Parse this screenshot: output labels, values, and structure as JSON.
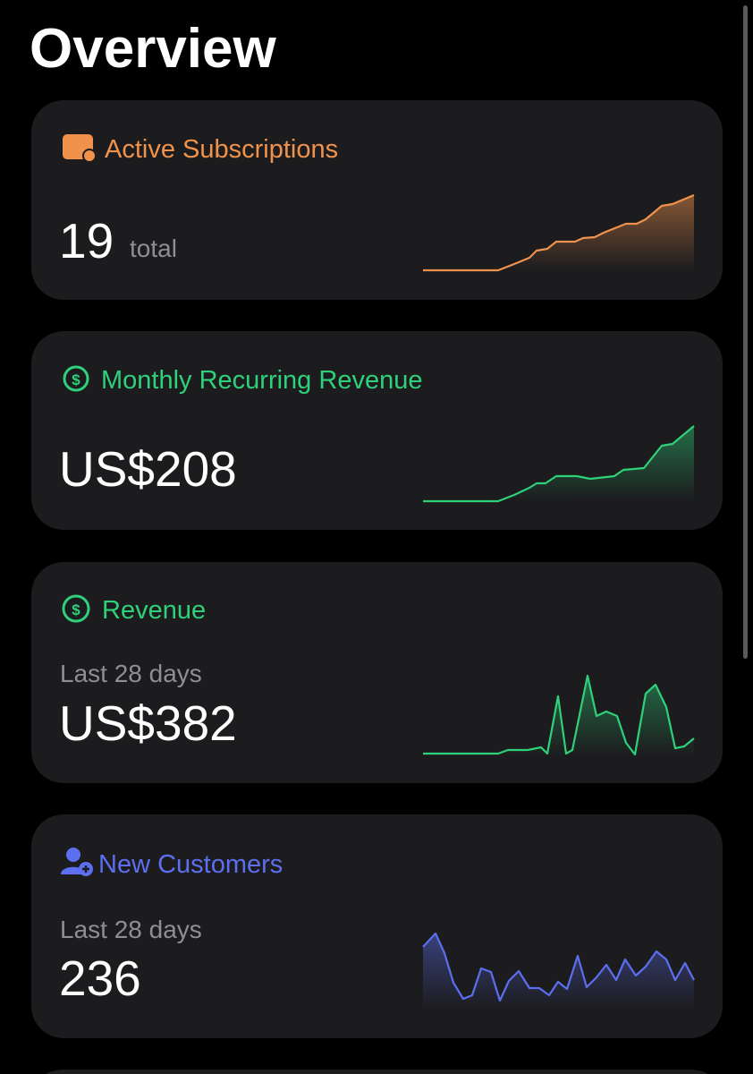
{
  "header": {
    "title": "Overview"
  },
  "cards": [
    {
      "title": "Active Subscriptions",
      "value": "19",
      "unit": "total"
    },
    {
      "title": "Monthly Recurring Revenue",
      "value": "US$208"
    },
    {
      "title": "Revenue",
      "subtitle": "Last 28 days",
      "value": "US$382"
    },
    {
      "title": "New Customers",
      "subtitle": "Last 28 days",
      "value": "236"
    }
  ]
}
